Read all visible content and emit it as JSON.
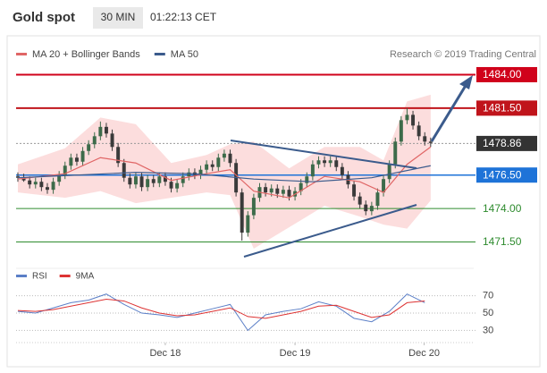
{
  "header": {
    "title": "Gold spot",
    "interval": "30 MIN",
    "time": "01:22:13 CET"
  },
  "chart_data": [
    {
      "type": "candlestick",
      "source": "Research © 2019 Trading Central",
      "up_color": "#3d6b4a",
      "down_color": "#3a3a3a",
      "xlim": [
        -0.3,
        77.3
      ],
      "ylim": [
        1470.2,
        1484.9
      ],
      "xticks": [
        {
          "value": 25,
          "label": "Dec 18"
        },
        {
          "value": 47,
          "label": "Dec 19"
        },
        {
          "value": 68.9,
          "label": "Dec 20"
        }
      ],
      "open": [
        1476.4,
        1476.3,
        1476.1,
        1475.8,
        1476.0,
        1475.6,
        1475.4,
        1476.0,
        1476.5,
        1477.2,
        1477.8,
        1477.5,
        1478.3,
        1478.8,
        1479.4,
        1480.1,
        1479.6,
        1478.6,
        1477.4,
        1476.3,
        1475.8,
        1476.4,
        1475.6,
        1476.2,
        1475.9,
        1476.4,
        1476.0,
        1475.5,
        1475.9,
        1476.4,
        1476.7,
        1476.5,
        1476.9,
        1477.3,
        1477.1,
        1477.8,
        1478.1,
        1477.4,
        1475.2,
        1472.2,
        1473.5,
        1474.8,
        1475.6,
        1475.2,
        1475.5,
        1475.1,
        1475.4,
        1474.9,
        1475.3,
        1475.9,
        1476.4,
        1477.3,
        1477.6,
        1477.4,
        1477.6,
        1477.1,
        1476.5,
        1475.8,
        1474.9,
        1474.3,
        1473.8,
        1474.2,
        1475.2,
        1476.2,
        1477.3,
        1479.0,
        1480.6,
        1481.0,
        1480.2,
        1479.4,
        1479.0
      ],
      "close": [
        1476.3,
        1476.1,
        1475.8,
        1476.0,
        1475.6,
        1475.4,
        1476.0,
        1476.5,
        1477.2,
        1477.8,
        1477.5,
        1478.3,
        1478.8,
        1479.4,
        1480.1,
        1479.6,
        1478.6,
        1477.4,
        1476.3,
        1475.8,
        1476.4,
        1475.6,
        1476.2,
        1475.9,
        1476.4,
        1476.0,
        1475.5,
        1475.9,
        1476.4,
        1476.7,
        1476.5,
        1476.9,
        1477.3,
        1477.1,
        1477.8,
        1478.1,
        1477.4,
        1475.2,
        1472.2,
        1473.5,
        1474.8,
        1475.6,
        1475.2,
        1475.5,
        1475.1,
        1475.4,
        1474.9,
        1475.3,
        1475.9,
        1476.4,
        1477.3,
        1477.6,
        1477.4,
        1477.6,
        1477.1,
        1476.5,
        1475.8,
        1474.9,
        1474.3,
        1473.8,
        1474.2,
        1475.2,
        1476.2,
        1477.3,
        1479.0,
        1480.6,
        1481.0,
        1480.2,
        1479.4,
        1479.0,
        1478.9
      ],
      "high": [
        1476.7,
        1476.6,
        1476.4,
        1476.3,
        1476.3,
        1475.9,
        1476.3,
        1476.8,
        1477.5,
        1478.1,
        1478.1,
        1478.6,
        1479.1,
        1479.7,
        1480.5,
        1480.4,
        1479.9,
        1478.9,
        1477.7,
        1476.6,
        1476.7,
        1476.7,
        1476.5,
        1476.5,
        1476.7,
        1476.7,
        1476.3,
        1476.2,
        1476.7,
        1477.0,
        1477.0,
        1477.2,
        1477.6,
        1477.6,
        1478.1,
        1478.4,
        1478.4,
        1477.7,
        1475.5,
        1473.8,
        1475.1,
        1475.9,
        1475.9,
        1475.8,
        1475.8,
        1475.7,
        1475.7,
        1475.6,
        1476.2,
        1476.7,
        1477.6,
        1477.9,
        1477.9,
        1477.9,
        1477.9,
        1477.4,
        1476.8,
        1476.1,
        1475.2,
        1474.6,
        1474.5,
        1475.5,
        1476.5,
        1477.6,
        1479.3,
        1480.9,
        1481.5,
        1481.3,
        1480.5,
        1479.7,
        1479.3
      ],
      "low": [
        1476.0,
        1476.0,
        1475.5,
        1475.5,
        1475.3,
        1475.1,
        1475.1,
        1475.7,
        1476.2,
        1476.9,
        1477.2,
        1477.2,
        1478.0,
        1478.5,
        1479.1,
        1479.3,
        1478.3,
        1477.1,
        1476.0,
        1475.5,
        1475.5,
        1475.3,
        1475.3,
        1475.6,
        1475.6,
        1475.7,
        1475.2,
        1475.2,
        1475.6,
        1476.1,
        1476.2,
        1476.2,
        1476.6,
        1476.8,
        1476.8,
        1477.5,
        1477.1,
        1474.9,
        1471.6,
        1471.9,
        1473.2,
        1474.5,
        1474.9,
        1474.9,
        1474.8,
        1474.8,
        1474.6,
        1474.6,
        1475.0,
        1475.6,
        1476.1,
        1477.0,
        1477.1,
        1477.1,
        1476.8,
        1476.2,
        1475.5,
        1474.6,
        1474.0,
        1473.5,
        1473.5,
        1473.9,
        1474.9,
        1475.9,
        1477.0,
        1478.7,
        1480.3,
        1479.9,
        1479.1,
        1478.7,
        1478.6
      ],
      "series": [
        {
          "name": "MA 20 + Bollinger Bands",
          "color": "#e06666",
          "band_color": "#fbd5d5",
          "x": [
            0,
            8,
            14,
            20,
            26,
            32,
            36,
            40,
            46,
            52,
            58,
            62,
            66,
            70
          ],
          "values": [
            1476.2,
            1476.6,
            1477.8,
            1477.4,
            1476.1,
            1476.6,
            1476.9,
            1475.3,
            1474.8,
            1476.4,
            1476.0,
            1475.2,
            1477.3,
            1478.6
          ],
          "upper": [
            1477.3,
            1478.5,
            1480.8,
            1480.3,
            1477.4,
            1478.0,
            1478.8,
            1479.0,
            1477.0,
            1478.6,
            1478.6,
            1477.6,
            1482.0,
            1482.5
          ],
          "lower": [
            1475.2,
            1474.8,
            1475.3,
            1474.4,
            1474.8,
            1475.2,
            1475.0,
            1471.0,
            1472.6,
            1474.2,
            1473.4,
            1472.8,
            1472.5,
            1474.6
          ]
        },
        {
          "name": "MA 50",
          "color": "#3b5b8c",
          "x": [
            0,
            10,
            20,
            30,
            40,
            50,
            60,
            70
          ],
          "values": [
            1476.3,
            1476.5,
            1476.7,
            1476.6,
            1476.2,
            1476.0,
            1476.3,
            1477.2
          ]
        }
      ],
      "levels": [
        {
          "value": 1484,
          "label": "1484.00",
          "color": "#d0021b",
          "style": "box"
        },
        {
          "value": 1481.5,
          "label": "1481.50",
          "color": "#c0141b",
          "style": "box"
        },
        {
          "value": 1478.86,
          "label": "1478.86",
          "color": "#333333",
          "style": "current"
        },
        {
          "value": 1476.5,
          "label": "1476.50",
          "color": "#1e73d8",
          "style": "box"
        },
        {
          "value": 1474,
          "label": "1474.00",
          "color": "#2e8b2e",
          "style": "text"
        },
        {
          "value": 1471.5,
          "label": "1471.50",
          "color": "#2e8b2e",
          "style": "text"
        }
      ]
    },
    {
      "type": "line",
      "xlim": [
        -0.3,
        77.3
      ],
      "ylim": [
        17,
        81
      ],
      "yticks": [
        70,
        50,
        30
      ],
      "x": [
        0,
        3,
        6,
        9,
        12,
        15,
        18,
        21,
        24,
        27,
        30,
        33,
        36,
        39,
        42,
        45,
        48,
        51,
        54,
        57,
        60,
        63,
        66,
        69
      ],
      "series": [
        {
          "name": "RSI",
          "color": "#5b7fc7",
          "values": [
            52,
            50,
            56,
            62,
            65,
            72,
            60,
            50,
            48,
            45,
            50,
            55,
            60,
            30,
            48,
            52,
            55,
            63,
            58,
            44,
            40,
            52,
            72,
            62
          ]
        },
        {
          "name": "9MA",
          "color": "#d33",
          "values": [
            53,
            52,
            54,
            58,
            62,
            66,
            64,
            56,
            50,
            47,
            48,
            52,
            56,
            46,
            44,
            48,
            52,
            58,
            59,
            52,
            45,
            48,
            62,
            64
          ]
        }
      ]
    }
  ]
}
